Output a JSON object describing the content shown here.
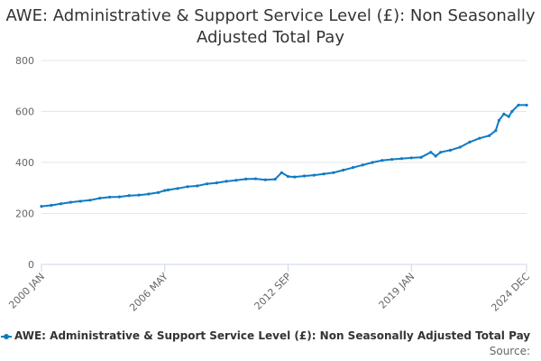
{
  "title": "AWE: Administrative & Support Service Level (£): Non Seasonally Adjusted Total Pay",
  "source_label": "Source:",
  "colors": {
    "series": "#0f7bc2",
    "grid": "#e6e6e6",
    "axis_text": "#666666",
    "axis_line": "#ccd6eb"
  },
  "chart_data": {
    "type": "line",
    "title": "AWE: Administrative & Support Service Level (£): Non Seasonally Adjusted Total Pay",
    "xlabel": "",
    "ylabel": "",
    "ylim": [
      0,
      800
    ],
    "yticks": [
      0,
      200,
      400,
      600,
      800
    ],
    "xticks": [
      "2000 JAN",
      "2006 MAY",
      "2012 SEP",
      "2019 JAN",
      "2024 DEC"
    ],
    "grid": true,
    "legend_position": "bottom",
    "series": [
      {
        "name": "AWE: Administrative & Support Service Level (£): Non Seasonally Adjusted Total Pay",
        "x": [
          "2000-01",
          "2000-07",
          "2001-01",
          "2001-07",
          "2002-01",
          "2002-07",
          "2003-01",
          "2003-07",
          "2004-01",
          "2004-07",
          "2005-01",
          "2005-07",
          "2006-01",
          "2006-05",
          "2006-07",
          "2007-01",
          "2007-07",
          "2008-01",
          "2008-07",
          "2009-01",
          "2009-07",
          "2010-01",
          "2010-07",
          "2011-01",
          "2011-07",
          "2012-01",
          "2012-05",
          "2012-09",
          "2013-01",
          "2013-07",
          "2014-01",
          "2014-07",
          "2015-01",
          "2015-07",
          "2016-01",
          "2016-07",
          "2017-01",
          "2017-07",
          "2018-01",
          "2018-07",
          "2019-01",
          "2019-07",
          "2020-01",
          "2020-04",
          "2020-07",
          "2021-01",
          "2021-07",
          "2022-01",
          "2022-07",
          "2023-01",
          "2023-05",
          "2023-07",
          "2023-10",
          "2024-01",
          "2024-03",
          "2024-07",
          "2024-12"
        ],
        "values": [
          228,
          232,
          238,
          244,
          248,
          252,
          260,
          264,
          265,
          270,
          272,
          276,
          282,
          290,
          292,
          298,
          305,
          308,
          316,
          320,
          326,
          330,
          335,
          336,
          332,
          334,
          360,
          345,
          343,
          347,
          350,
          355,
          360,
          370,
          380,
          390,
          400,
          408,
          412,
          415,
          418,
          420,
          440,
          425,
          440,
          448,
          460,
          480,
          495,
          505,
          525,
          565,
          590,
          580,
          600,
          625,
          625
        ]
      }
    ]
  }
}
